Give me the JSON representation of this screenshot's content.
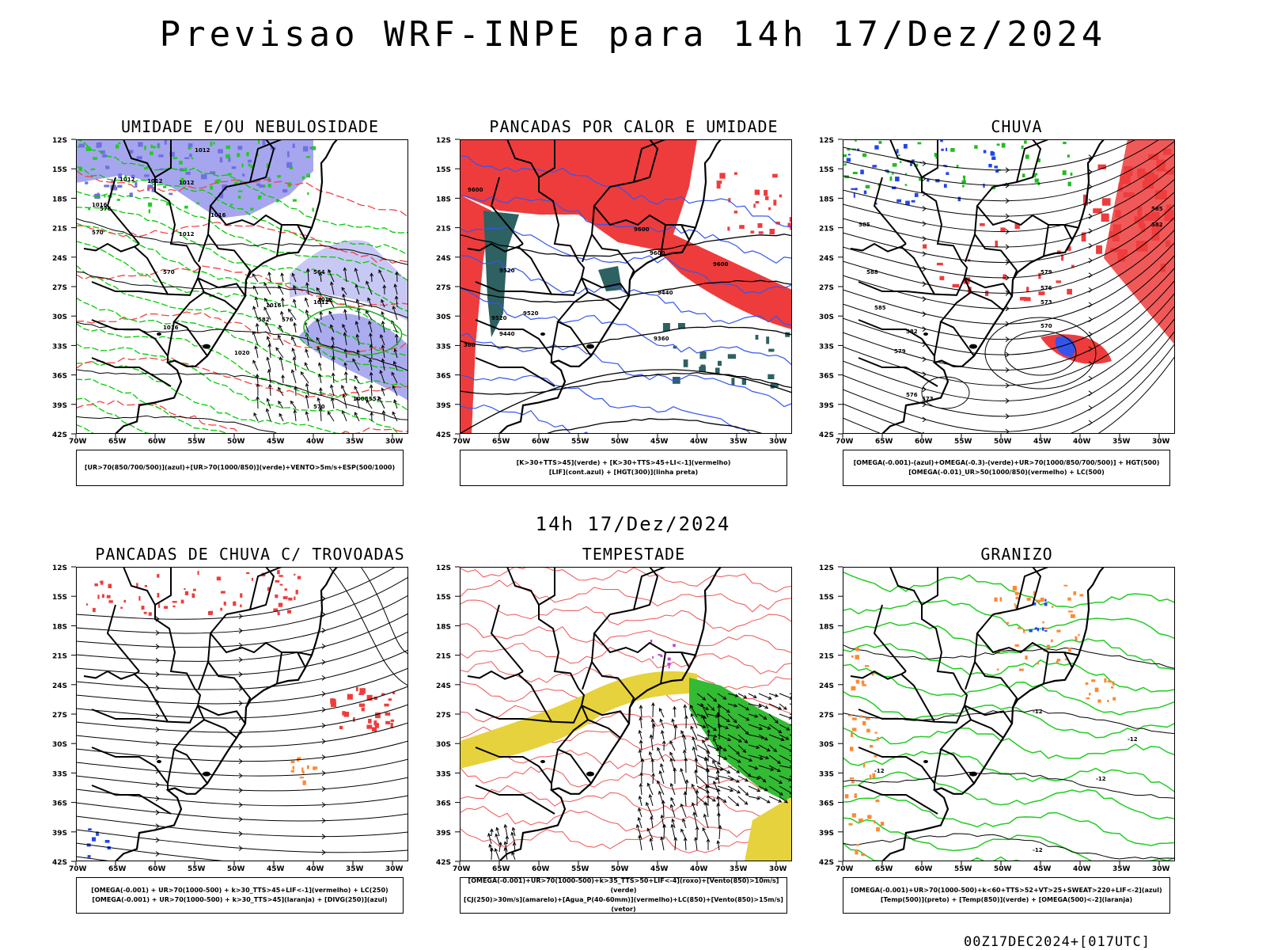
{
  "main_title": "Previsao WRF-INPE  para 14h 17/Dez/2024",
  "mid_title": "14h 17/Dez/2024",
  "footer": "00Z17DEC2024+[017UTC]",
  "y_ticks": [
    "12S",
    "15S",
    "18S",
    "21S",
    "24S",
    "27S",
    "30S",
    "33S",
    "36S",
    "39S",
    "42S"
  ],
  "x_ticks": [
    "70W",
    "65W",
    "60W",
    "55W",
    "50W",
    "45W",
    "40W",
    "35W",
    "30W"
  ],
  "panels": [
    {
      "title": "UMIDADE E/OU NEBULOSIDADE",
      "legend": [
        "[UR>70(850/700/500)](azul)+[UR>70(1000/850)](verde)+VENTO>5m/s+ESP(500/1000)"
      ],
      "contour_labels": [
        "1012",
        "1012",
        "1012",
        "1012",
        "1016",
        "1016",
        "1012",
        "1016",
        "1020",
        "1012",
        "1016",
        "570",
        "576",
        "570",
        "564",
        "582",
        "576",
        "570",
        "552",
        "1012",
        "1008"
      ]
    },
    {
      "title": "PANCADAS POR CALOR E UMIDADE",
      "legend": [
        "[K>30+TTS>45](verde) + [K>30+TTS>45+LI<-1](vermelho)",
        "[LIF](cont.azul) + [HGT(300)](linha preta)"
      ],
      "contour_labels": [
        "9600",
        "9600",
        "9520",
        "9600",
        "9440",
        "9360",
        "9440",
        "9520",
        "360",
        "9600",
        "9520"
      ]
    },
    {
      "title": "CHUVA",
      "legend": [
        "[OMEGA(-0.001)-(azul)+OMEGA(-0.3)-(verde)+UR>70(1000/850/700/500)] + HGT(500)",
        "[OMEGA(-0.01)_UR>50(1000/850)(vermelho) + LC(500)"
      ],
      "contour_labels": [
        "585",
        "588",
        "585",
        "582",
        "579",
        "576",
        "573",
        "570",
        "576",
        "573",
        "579",
        "582",
        "585"
      ]
    },
    {
      "title": "PANCADAS DE CHUVA C/ TROVOADAS",
      "legend": [
        "[OMEGA(-0.001) + UR>70(1000-500) + k>30_TTS>45+LIF<-1](vermelho) + LC(250)",
        "[OMEGA(-0.001) + UR>70(1000-500) + k>30_TTS>45](laranja) + [DIVG(250)](azul)"
      ],
      "contour_labels": []
    },
    {
      "title": "TEMPESTADE",
      "legend": [
        "[OMEGA(-0.001)+UR>70(1000-500)+k>35_TTS>50+LIF<-4](roxo)+[Vento(850)>10m/s](verde)",
        "[CJ(250)>30m/s](amarelo)+[Agua_P(40-60mm)](vermelho)+LC(850)+[Vento(850)>15m/s](vetor)"
      ],
      "contour_labels": []
    },
    {
      "title": "GRANIZO",
      "legend": [
        "[OMEGA(-0.001)+UR>70(1000-500)+k<60+TTS>52+VT>25+SWEAT>220+LIF<-2](azul)",
        "[Temp(500)](preto) + [Temp(850)](verde) + [OMEGA(500)<-2](laranja)"
      ],
      "contour_labels": [
        "-12",
        "-12",
        "-12",
        "-12",
        "-12"
      ]
    }
  ]
}
